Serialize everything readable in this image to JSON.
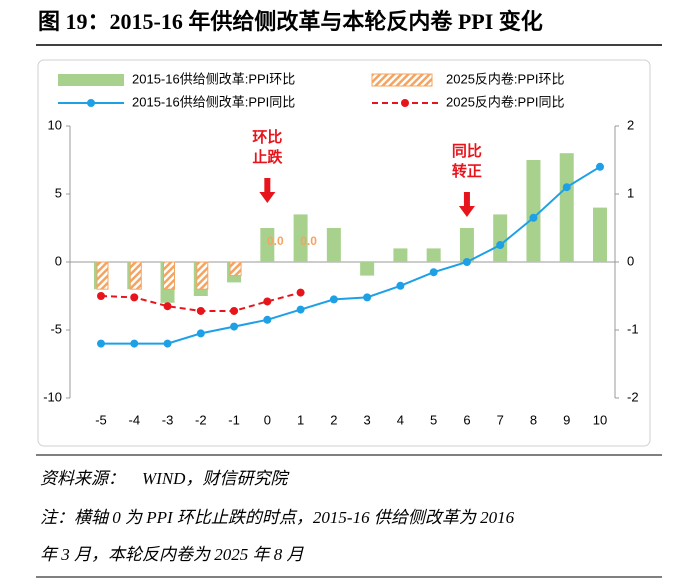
{
  "header": {
    "title": "图 19：2015-16 年供给侧改革与本轮反内卷 PPI 变化"
  },
  "chart_data": {
    "type": "combo",
    "categories": [
      "-5",
      "-4",
      "-3",
      "-2",
      "-1",
      "0",
      "1",
      "2",
      "3",
      "4",
      "5",
      "6",
      "7",
      "8",
      "9",
      "10"
    ],
    "ylim": [
      -10,
      10
    ],
    "yticks": [
      -10,
      -5,
      0,
      5,
      10
    ],
    "y2lim": [
      -2,
      2
    ],
    "y2ticks": [
      -2,
      -1,
      0,
      1,
      2
    ],
    "series": [
      {
        "name": "2015-16供给侧改革:PPI环比",
        "type": "bar",
        "color": "#a9d18e",
        "values": [
          -2,
          -2,
          -3,
          -2.5,
          -1.5,
          2.5,
          3.5,
          2.5,
          -1,
          1,
          1,
          2.5,
          3.5,
          7.5,
          8,
          4
        ]
      },
      {
        "name": "2025反内卷:PPI环比",
        "type": "hatched-bar",
        "color": "#f4a460",
        "values": [
          -2,
          -2,
          -2,
          -2,
          -1,
          0,
          0,
          null,
          null,
          null,
          null,
          null,
          null,
          null,
          null,
          null
        ],
        "value_labels": [
          null,
          null,
          null,
          null,
          null,
          "0.0",
          "0.0",
          null,
          null,
          null,
          null,
          null,
          null,
          null,
          null,
          null
        ]
      },
      {
        "name": "2015-16供给侧改革:PPI同比",
        "type": "line",
        "axis": "y2",
        "color": "#1ea0e6",
        "values": [
          -1.2,
          -1.2,
          -1.2,
          -1.05,
          -0.95,
          -0.85,
          -0.7,
          -0.55,
          -0.52,
          -0.35,
          -0.15,
          0,
          0.25,
          0.65,
          1.1,
          1.4
        ]
      },
      {
        "name": "2025反内卷:PPI同比",
        "type": "dashed-line",
        "axis": "y2",
        "color": "#e8141c",
        "values": [
          -0.5,
          -0.52,
          -0.65,
          -0.72,
          -0.72,
          -0.58,
          -0.45,
          null,
          null,
          null,
          null,
          null,
          null,
          null,
          null,
          null
        ]
      }
    ],
    "annotations": [
      [
        "环比",
        "止跌"
      ],
      [
        "同比",
        "转正"
      ]
    ]
  },
  "footer": {
    "source": "资料来源：　WIND，财信研究院",
    "note": [
      "注：横轴 0 为 PPI 环比止跌的时点，2015-16 供给侧改革为 2016",
      "年 3 月，本轮反内卷为 2025 年 8 月"
    ]
  }
}
